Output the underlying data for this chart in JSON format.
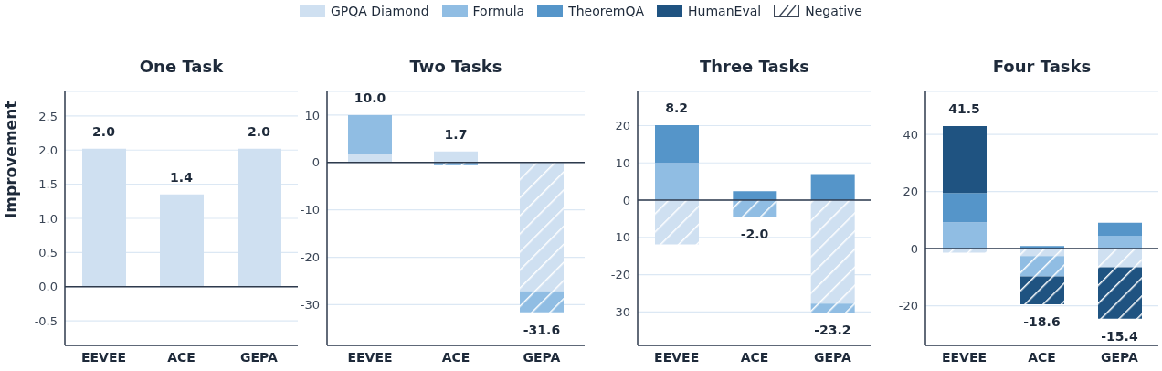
{
  "chart_data": [
    {
      "type": "bar",
      "title": "One Task",
      "ylabel": "Improvement",
      "categories": [
        "EEVEE",
        "ACE",
        "GEPA"
      ],
      "stacked": true,
      "series": [
        {
          "name": "GPQA Diamond",
          "color": "#cfe0f1",
          "values": [
            2.02,
            1.35,
            2.02
          ]
        }
      ],
      "totals": [
        "2.0",
        "1.4",
        "2.0"
      ],
      "ylim": [
        -0.86,
        2.86
      ],
      "yticks": [
        {
          "value": -0.5,
          "label": "-0.5"
        },
        {
          "value": 0,
          "label": "0.0"
        },
        {
          "value": 0.5,
          "label": "0.5"
        },
        {
          "value": 1,
          "label": "1.0"
        },
        {
          "value": 1.5,
          "label": "1.5"
        },
        {
          "value": 2,
          "label": "2.0"
        },
        {
          "value": 2.5,
          "label": "2.5"
        }
      ],
      "grid": "y",
      "legend": "top",
      "ref_lines": [
        {
          "axis": "y",
          "value": 0,
          "color": "#2e3a4c"
        }
      ]
    },
    {
      "type": "bar",
      "title": "Two Tasks",
      "categories": [
        "EEVEE",
        "ACE",
        "GEPA"
      ],
      "stacked": true,
      "series": [
        {
          "color": "#cfe0f1",
          "values": [
            1.7,
            2.3,
            -27.2
          ]
        },
        {
          "name": "Formula",
          "color": "#90bde3",
          "values": [
            8.3,
            -0.6,
            -4.4
          ]
        }
      ],
      "totals": [
        "10.0",
        "1.7",
        "-31.6"
      ],
      "ylim": [
        -38.6,
        15
      ],
      "yticks": [
        -30,
        -20,
        -10,
        0,
        10
      ],
      "grid": "y",
      "legend": "top",
      "ref_lines": [
        {
          "axis": "y",
          "value": 0,
          "color": "#2e3a4c"
        }
      ]
    },
    {
      "type": "bar",
      "title": "Three Tasks",
      "categories": [
        "EEVEE",
        "ACE",
        "GEPA"
      ],
      "stacked": true,
      "series": [
        {
          "color": "#cfe0f1",
          "values": [
            -11.9,
            null,
            -27.8
          ]
        },
        {
          "color": "#90bde3",
          "values": [
            10.0,
            -4.4,
            -2.4
          ]
        },
        {
          "name": "TheoremQA",
          "color": "#5595c9",
          "values": [
            10.1,
            2.4,
            7.0
          ]
        }
      ],
      "totals": [
        "8.2",
        "-2.0",
        "-23.2"
      ],
      "ylim": [
        -39,
        29.2
      ],
      "yticks": [
        -30,
        -20,
        -10,
        0,
        10,
        20
      ],
      "grid": "y",
      "legend": "top",
      "ref_lines": [
        {
          "axis": "y",
          "value": 0,
          "color": "#2e3a4c"
        }
      ]
    },
    {
      "type": "bar",
      "title": "Four Tasks",
      "categories": [
        "EEVEE",
        "ACE",
        "GEPA"
      ],
      "stacked": true,
      "series": [
        {
          "color": "#cfe0f1",
          "values": [
            -1.4,
            -2.6,
            -6.5
          ]
        },
        {
          "color": "#90bde3",
          "values": [
            9.2,
            -7.1,
            4.5
          ]
        },
        {
          "color": "#5595c9",
          "values": [
            10.3,
            0.9,
            4.6
          ]
        },
        {
          "name": "HumanEval",
          "color": "#1f5381",
          "values": [
            23.4,
            -9.8,
            -18.0
          ]
        }
      ],
      "totals": [
        "41.5",
        "-18.6",
        "-15.4"
      ],
      "ylim": [
        -33.9,
        55.1
      ],
      "yticks": [
        -20,
        0,
        20,
        40
      ],
      "grid": "y",
      "legend": "top",
      "annotations": [
        "Negative"
      ],
      "ref_lines": [
        {
          "axis": "y",
          "value": 0,
          "color": "#2e3a4c"
        }
      ]
    }
  ]
}
